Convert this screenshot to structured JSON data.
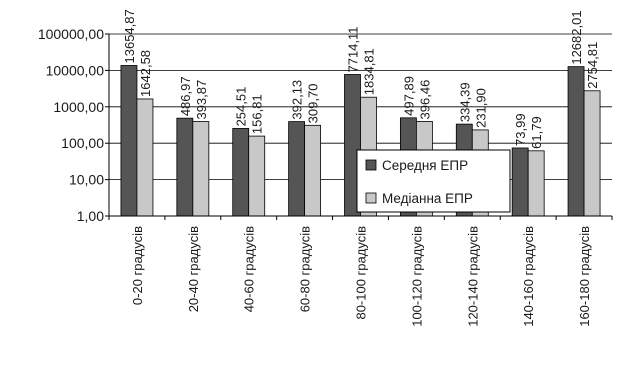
{
  "chart_data": {
    "type": "bar",
    "yscale": "log",
    "ylim": [
      1,
      100000
    ],
    "yticks": [
      1,
      10,
      100,
      1000,
      10000,
      100000
    ],
    "ytick_labels": [
      "1,00",
      "10,00",
      "100,00",
      "1000,00",
      "10000,00",
      "100000,00"
    ],
    "grid": true,
    "legend_position": "bottom-right",
    "colors": {
      "series1": "#555555",
      "series2": "#c8c8c8",
      "stroke": "#000000"
    },
    "categories": [
      "0-20 градусів",
      "20-40 градусів",
      "40-60 градусів",
      "60-80 градусів",
      "80-100 градусів",
      "100-120 градусів",
      "120-140 градусів",
      "140-160 градусів",
      "160-180 градусів"
    ],
    "series": [
      {
        "name": "Середня ЕПР",
        "values": [
          13654.87,
          486.97,
          254.51,
          392.13,
          7714.11,
          497.89,
          334.39,
          73.99,
          12682.01
        ],
        "labels": [
          "13654,87",
          "486,97",
          "254,51",
          "392,13",
          "7714,11",
          "497,89",
          "334,39",
          "73,99",
          "12682,01"
        ]
      },
      {
        "name": "Медіанна ЕПР",
        "values": [
          1642.58,
          393.87,
          156.81,
          309.7,
          1834.81,
          396.46,
          231.9,
          61.79,
          2754.81
        ],
        "labels": [
          "1642,58",
          "393,87",
          "156,81",
          "309,70",
          "1834,81",
          "396,46",
          "231,90",
          "61,79",
          "2754,81"
        ]
      }
    ]
  }
}
